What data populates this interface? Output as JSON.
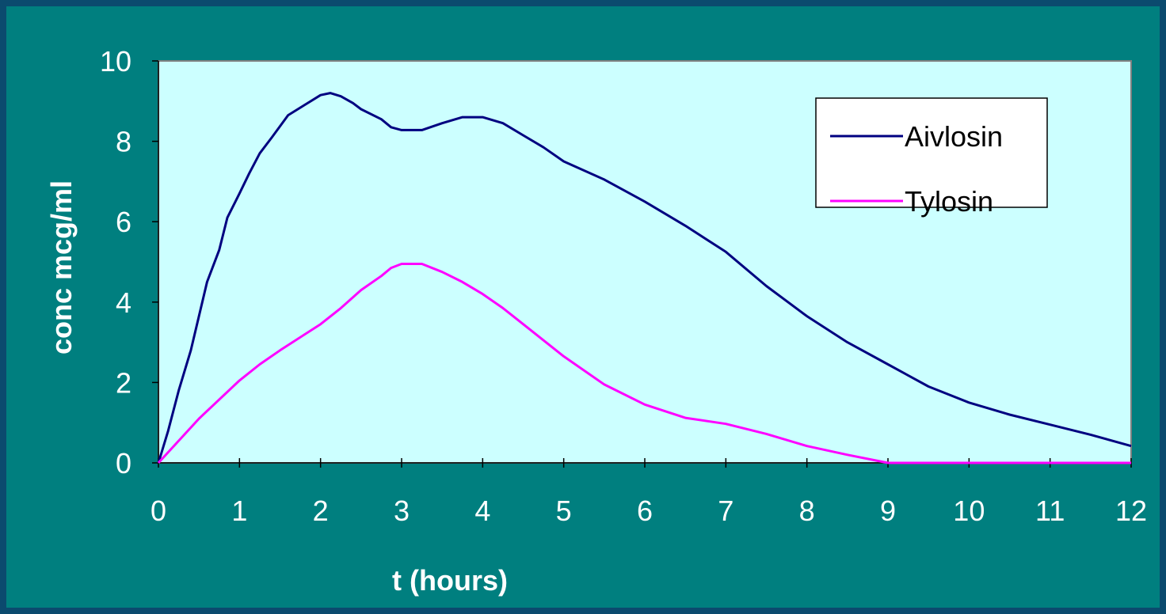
{
  "chart_data": {
    "type": "line",
    "xlabel": "t (hours)",
    "ylabel": "conc mcg/ml",
    "xlim": [
      0,
      12
    ],
    "ylim": [
      0,
      10
    ],
    "x_ticks": [
      "0",
      "1",
      "2",
      "3",
      "4",
      "5",
      "6",
      "7",
      "8",
      "9",
      "10",
      "11",
      "12"
    ],
    "y_ticks": [
      "0",
      "2",
      "4",
      "6",
      "8",
      "10"
    ],
    "grid": false,
    "legend_position": "top-right",
    "plot_background": "#ccffff",
    "series": [
      {
        "name": "Aivlosin",
        "color": "#000080",
        "points": [
          [
            0,
            0
          ],
          [
            0.12,
            0.8
          ],
          [
            0.25,
            1.8
          ],
          [
            0.4,
            2.8
          ],
          [
            0.6,
            4.5
          ],
          [
            0.75,
            5.3
          ],
          [
            0.85,
            6.1
          ],
          [
            1.0,
            6.7
          ],
          [
            1.12,
            7.2
          ],
          [
            1.25,
            7.7
          ],
          [
            1.4,
            8.1
          ],
          [
            1.6,
            8.65
          ],
          [
            1.8,
            8.9
          ],
          [
            2.0,
            9.15
          ],
          [
            2.12,
            9.2
          ],
          [
            2.25,
            9.12
          ],
          [
            2.4,
            8.95
          ],
          [
            2.5,
            8.8
          ],
          [
            2.75,
            8.55
          ],
          [
            2.87,
            8.35
          ],
          [
            3.0,
            8.28
          ],
          [
            3.25,
            8.28
          ],
          [
            3.5,
            8.45
          ],
          [
            3.75,
            8.6
          ],
          [
            4.0,
            8.6
          ],
          [
            4.25,
            8.45
          ],
          [
            4.5,
            8.15
          ],
          [
            4.75,
            7.85
          ],
          [
            5.0,
            7.5
          ],
          [
            5.5,
            7.05
          ],
          [
            6.0,
            6.5
          ],
          [
            6.5,
            5.9
          ],
          [
            7.0,
            5.25
          ],
          [
            7.5,
            4.4
          ],
          [
            8.0,
            3.65
          ],
          [
            8.5,
            3.0
          ],
          [
            9.0,
            2.45
          ],
          [
            9.5,
            1.9
          ],
          [
            10.0,
            1.5
          ],
          [
            10.5,
            1.2
          ],
          [
            11.0,
            0.95
          ],
          [
            11.5,
            0.7
          ],
          [
            12.0,
            0.42
          ]
        ]
      },
      {
        "name": "Tylosin",
        "color": "#ff00ff",
        "points": [
          [
            0,
            0
          ],
          [
            0.5,
            1.1
          ],
          [
            1.0,
            2.05
          ],
          [
            1.25,
            2.45
          ],
          [
            1.5,
            2.8
          ],
          [
            2.0,
            3.45
          ],
          [
            2.25,
            3.85
          ],
          [
            2.5,
            4.3
          ],
          [
            2.75,
            4.65
          ],
          [
            2.87,
            4.85
          ],
          [
            3.0,
            4.95
          ],
          [
            3.25,
            4.95
          ],
          [
            3.5,
            4.75
          ],
          [
            3.75,
            4.5
          ],
          [
            4.0,
            4.2
          ],
          [
            4.25,
            3.85
          ],
          [
            4.5,
            3.45
          ],
          [
            4.75,
            3.05
          ],
          [
            5.0,
            2.65
          ],
          [
            5.5,
            1.95
          ],
          [
            6.0,
            1.45
          ],
          [
            6.5,
            1.12
          ],
          [
            7.0,
            0.97
          ],
          [
            7.5,
            0.72
          ],
          [
            8.0,
            0.42
          ],
          [
            8.5,
            0.2
          ],
          [
            9.0,
            0.0
          ],
          [
            10.0,
            0.0
          ],
          [
            11.0,
            0.0
          ],
          [
            12.0,
            0.0
          ]
        ]
      }
    ]
  }
}
